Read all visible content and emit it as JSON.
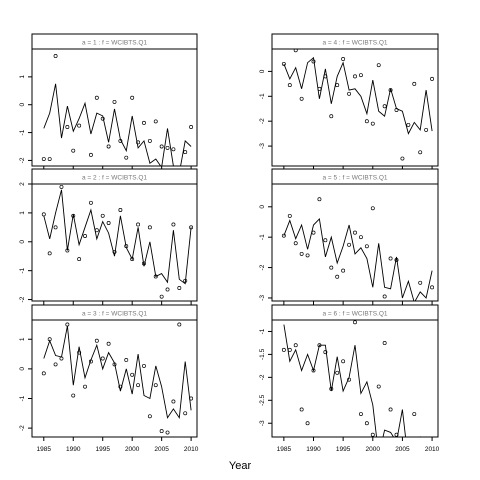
{
  "xlabel": "Year",
  "chart_data": [
    {
      "type": "line",
      "title": "a = 1 : f = WCIBTS.Q1",
      "xlim": [
        1983,
        2011
      ],
      "ylim": [
        -2.2,
        2.0
      ],
      "x_ticks": [
        1985,
        1990,
        1995,
        2000,
        2005,
        2010
      ],
      "y_ticks": [
        -2,
        -1,
        0,
        1
      ],
      "show_x_tick_labels": false,
      "line_x": [
        1985,
        1986,
        1987,
        1988,
        1989,
        1990,
        1991,
        1992,
        1993,
        1994,
        1995,
        1996,
        1997,
        1998,
        1999,
        2000,
        2001,
        2002,
        2003,
        2004,
        2005,
        2006,
        2007,
        2008,
        2009,
        2010
      ],
      "line_y": [
        -0.85,
        -0.3,
        0.75,
        -1.2,
        -0.05,
        -0.95,
        -0.5,
        0.05,
        -1.05,
        -0.3,
        -0.4,
        -1.35,
        -0.15,
        -1.25,
        -1.65,
        -0.4,
        -1.55,
        -1.3,
        -2.1,
        -1.95,
        -2.25,
        -0.85,
        -2.2,
        -2.45,
        -1.3,
        -1.5
      ],
      "points_x": [
        1985,
        1986,
        1987,
        1989,
        1990,
        1991,
        1993,
        1994,
        1995,
        1996,
        1997,
        1998,
        1999,
        2000,
        2001,
        2002,
        2003,
        2004,
        2005,
        2006,
        2007,
        2008,
        2009,
        2010
      ],
      "points_y": [
        -1.95,
        -1.95,
        1.75,
        -0.8,
        -1.65,
        -0.75,
        -1.8,
        0.25,
        -0.5,
        -1.5,
        0.1,
        -1.3,
        -1.9,
        0.25,
        -1.35,
        -0.65,
        -1.3,
        -0.6,
        -1.5,
        -1.55,
        -1.6,
        -2.5,
        -1.7,
        -0.8
      ]
    },
    {
      "type": "line",
      "title": "a = 4 : f = WCIBTS.Q1",
      "xlim": [
        1983,
        2011
      ],
      "ylim": [
        -3.8,
        0.9
      ],
      "x_ticks": [
        1985,
        1990,
        1995,
        2000,
        2005,
        2010
      ],
      "y_ticks": [
        -3,
        -2,
        -1,
        0
      ],
      "show_x_tick_labels": false,
      "line_x": [
        1985,
        1986,
        1987,
        1988,
        1989,
        1990,
        1991,
        1992,
        1993,
        1994,
        1995,
        1996,
        1997,
        1998,
        1999,
        2000,
        2001,
        2002,
        2003,
        2004,
        2005,
        2006,
        2007,
        2008,
        2009,
        2010
      ],
      "line_y": [
        0.3,
        -0.3,
        0.15,
        -0.7,
        0.35,
        0.55,
        -1.1,
        0.1,
        -1.3,
        -0.2,
        0.35,
        -0.75,
        -0.7,
        -1.0,
        -1.7,
        -0.35,
        -1.6,
        -1.8,
        -0.7,
        -1.5,
        -1.6,
        -2.5,
        -2.05,
        -2.35,
        -0.75,
        -2.4
      ],
      "points_x": [
        1985,
        1986,
        1987,
        1988,
        1990,
        1991,
        1992,
        1993,
        1994,
        1995,
        1996,
        1997,
        1998,
        1999,
        2000,
        2001,
        2002,
        2003,
        2004,
        2005,
        2006,
        2007,
        2008,
        2009,
        2010
      ],
      "points_y": [
        0.3,
        -0.55,
        0.85,
        -1.1,
        0.4,
        -0.7,
        -0.2,
        -1.8,
        -0.55,
        0.5,
        -0.9,
        -0.2,
        -0.15,
        -2.0,
        -2.1,
        0.25,
        -1.4,
        -0.75,
        -1.55,
        -3.5,
        -2.15,
        -0.5,
        -3.25,
        -2.35,
        -0.3
      ]
    },
    {
      "type": "line",
      "title": "a = 2 : f = WCIBTS.Q1",
      "xlim": [
        1983,
        2011
      ],
      "ylim": [
        -2.05,
        2.0
      ],
      "x_ticks": [
        1985,
        1990,
        1995,
        2000,
        2005,
        2010
      ],
      "y_ticks": [
        -2,
        -1,
        0,
        1,
        2
      ],
      "show_x_tick_labels": false,
      "line_x": [
        1985,
        1986,
        1987,
        1988,
        1989,
        1990,
        1991,
        1992,
        1993,
        1994,
        1995,
        1996,
        1997,
        1998,
        1999,
        2000,
        2001,
        2002,
        2003,
        2004,
        2005,
        2006,
        2007,
        2008,
        2009,
        2010
      ],
      "line_y": [
        0.9,
        0.1,
        1.0,
        1.8,
        -0.3,
        0.95,
        -0.1,
        0.5,
        1.1,
        0.1,
        0.7,
        0.3,
        -0.5,
        0.9,
        -0.2,
        -0.6,
        0.5,
        -0.85,
        0.0,
        -1.2,
        -1.1,
        -1.4,
        0.4,
        -1.3,
        -1.45,
        0.5
      ],
      "points_x": [
        1985,
        1986,
        1987,
        1988,
        1989,
        1990,
        1991,
        1992,
        1993,
        1994,
        1995,
        1996,
        1997,
        1998,
        1999,
        2000,
        2001,
        2002,
        2003,
        2004,
        2005,
        2006,
        2007,
        2008,
        2009,
        2010
      ],
      "points_y": [
        0.95,
        -0.4,
        0.5,
        1.9,
        -0.3,
        0.9,
        -0.6,
        0.2,
        1.35,
        0.4,
        0.9,
        0.65,
        -0.35,
        1.1,
        -0.15,
        -0.6,
        0.6,
        -0.75,
        0.5,
        -1.2,
        -1.9,
        -1.65,
        0.6,
        -1.6,
        -1.35,
        0.5
      ]
    },
    {
      "type": "line",
      "title": "a = 5 : f = WCIBTS.Q1",
      "xlim": [
        1983,
        2011
      ],
      "ylim": [
        -3.1,
        0.75
      ],
      "x_ticks": [
        1985,
        1990,
        1995,
        2000,
        2005,
        2010
      ],
      "y_ticks": [
        -3,
        -2,
        -1,
        0
      ],
      "show_x_tick_labels": false,
      "line_x": [
        1985,
        1986,
        1987,
        1988,
        1989,
        1990,
        1991,
        1992,
        1993,
        1994,
        1995,
        1996,
        1997,
        1998,
        1999,
        2000,
        2001,
        2002,
        2003,
        2004,
        2005,
        2006,
        2007,
        2008,
        2009,
        2010
      ],
      "line_y": [
        -0.95,
        -0.45,
        -1.05,
        -0.6,
        -1.4,
        -0.6,
        -0.4,
        -1.65,
        -1.0,
        -1.85,
        -1.3,
        -0.6,
        -1.55,
        -1.35,
        -1.7,
        -2.65,
        -1.2,
        -2.65,
        -2.7,
        -1.65,
        -3.0,
        -2.45,
        -3.15,
        -2.8,
        -3.0,
        -2.1
      ],
      "points_x": [
        1985,
        1986,
        1987,
        1988,
        1989,
        1990,
        1991,
        1992,
        1993,
        1994,
        1995,
        1996,
        1997,
        1998,
        1999,
        2000,
        2002,
        2003,
        2004,
        2008,
        2010
      ],
      "points_y": [
        -0.95,
        -0.3,
        -1.2,
        -1.55,
        -1.6,
        -0.85,
        0.25,
        -1.1,
        -2.0,
        -2.3,
        -2.1,
        -1.25,
        -0.85,
        -1.0,
        -1.3,
        -0.05,
        -2.95,
        -1.7,
        -1.75,
        -2.5,
        -2.65
      ]
    },
    {
      "type": "line",
      "title": "a = 3 : f = WCIBTS.Q1",
      "xlim": [
        1983,
        2011
      ],
      "ylim": [
        -2.3,
        1.65
      ],
      "x_ticks": [
        1985,
        1990,
        1995,
        2000,
        2005,
        2010
      ],
      "y_ticks": [
        -2,
        -1,
        0,
        1
      ],
      "show_x_tick_labels": true,
      "line_x": [
        1985,
        1986,
        1987,
        1988,
        1989,
        1990,
        1991,
        1992,
        1993,
        1994,
        1995,
        1996,
        1997,
        1998,
        1999,
        2000,
        2001,
        2002,
        2003,
        2004,
        2005,
        2006,
        2007,
        2008,
        2009,
        2010
      ],
      "line_y": [
        0.35,
        0.95,
        0.45,
        0.4,
        1.45,
        -0.55,
        0.75,
        -0.3,
        0.3,
        0.8,
        0.0,
        0.55,
        0.2,
        -0.75,
        0.0,
        -0.85,
        0.5,
        -0.9,
        -1.0,
        0.1,
        -0.6,
        -1.65,
        -1.35,
        -1.65,
        0.25,
        -1.4
      ],
      "points_x": [
        1985,
        1986,
        1987,
        1988,
        1989,
        1990,
        1991,
        1992,
        1993,
        1994,
        1995,
        1996,
        1997,
        1998,
        1999,
        2000,
        2001,
        2002,
        2003,
        2004,
        2005,
        2006,
        2007,
        2008,
        2009,
        2010
      ],
      "points_y": [
        -0.15,
        1.0,
        0.15,
        0.35,
        1.5,
        -0.9,
        0.55,
        -0.6,
        0.25,
        0.95,
        0.35,
        0.85,
        0.15,
        -0.6,
        0.3,
        -0.2,
        -0.55,
        0.1,
        -1.6,
        -0.55,
        -2.1,
        -2.15,
        -1.1,
        1.5,
        -1.5,
        -1.0
      ]
    },
    {
      "type": "line",
      "title": "a = 6 : f = WCIBTS.Q1",
      "xlim": [
        1983,
        2011
      ],
      "ylim": [
        -3.3,
        -0.75
      ],
      "x_ticks": [
        1985,
        1990,
        1995,
        2000,
        2005,
        2010
      ],
      "y_ticks": [
        -3.0,
        -2.5,
        -2.0,
        -1.5,
        -1.0
      ],
      "show_x_tick_labels": true,
      "line_x": [
        1985,
        1986,
        1987,
        1988,
        1989,
        1990,
        1991,
        1992,
        1993,
        1994,
        1995,
        1996,
        1997,
        1998,
        1999,
        2000,
        2001,
        2002,
        2003,
        2004,
        2005,
        2006,
        2007,
        2008,
        2009,
        2010
      ],
      "line_y": [
        -0.85,
        -1.65,
        -1.4,
        -1.85,
        -1.5,
        -1.85,
        -1.3,
        -1.3,
        -2.3,
        -1.55,
        -2.3,
        -2.0,
        -1.3,
        -2.35,
        -2.1,
        -2.6,
        -3.7,
        -3.15,
        -3.2,
        -3.4,
        -2.7,
        -3.85,
        -3.5,
        -3.3,
        -3.5,
        -3.6
      ],
      "points_x": [
        1985,
        1986,
        1987,
        1988,
        1989,
        1990,
        1991,
        1992,
        1993,
        1994,
        1995,
        1996,
        1997,
        1998,
        1999,
        2000,
        2001,
        2002,
        2003,
        2004,
        2007
      ],
      "points_y": [
        -1.4,
        -1.4,
        -1.3,
        -2.7,
        -3.0,
        -1.85,
        -1.3,
        -1.45,
        -2.25,
        -1.9,
        -1.65,
        -2.05,
        -0.8,
        -2.8,
        -3.0,
        -3.25,
        -2.2,
        -1.25,
        -2.7,
        -3.25,
        -2.8
      ]
    }
  ]
}
